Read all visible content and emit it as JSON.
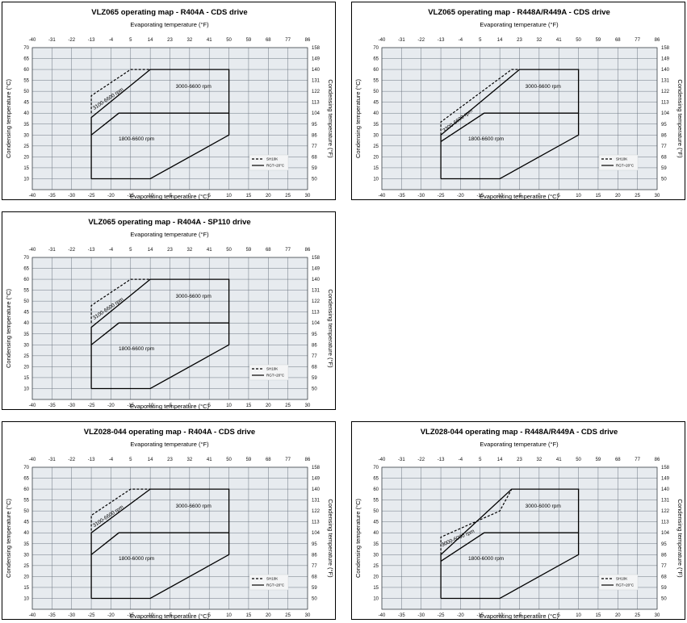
{
  "axis_common": {
    "top_label": "Evaporating temperature (°F)",
    "bottom_label": "Evaporating temperature (°C)",
    "left_label": "Condensing temperature (°C)",
    "right_label": "Condensing temperature (°F)",
    "x_ticks_c": [
      "-40",
      "-35",
      "-30",
      "-25",
      "-20",
      "-15",
      "-10",
      "-5",
      "0",
      "5",
      "10",
      "15",
      "20",
      "25",
      "30"
    ],
    "x_ticks_f": [
      "-40",
      "-31",
      "-22",
      "-13",
      "-4",
      "5",
      "14",
      "23",
      "32",
      "41",
      "50",
      "59",
      "68",
      "77",
      "86"
    ],
    "y_ticks_c": [
      "10",
      "15",
      "20",
      "25",
      "30",
      "35",
      "40",
      "45",
      "50",
      "55",
      "60",
      "65",
      "70"
    ],
    "y_ticks_f": [
      "50",
      "59",
      "68",
      "77",
      "86",
      "95",
      "104",
      "113",
      "122",
      "131",
      "140",
      "149",
      "158"
    ]
  },
  "chart_data": [
    {
      "type": "line",
      "title": "VLZ065 operating map - R404A - CDS drive",
      "xlim": [
        -40,
        30
      ],
      "ylim": [
        5,
        70
      ],
      "legend": [
        "SH10K",
        "RGT=20°C"
      ],
      "legend_position": "bottom-right",
      "regions": [
        "3000-6600 rpm",
        "1800-6600 rpm"
      ],
      "band_label": "3100-6600 rpm",
      "series": [
        {
          "name": "RGT=20°C envelope",
          "style": "solid",
          "points": [
            [
              -25,
              10
            ],
            [
              -10,
              10
            ],
            [
              10,
              30
            ],
            [
              10,
              60
            ],
            [
              -10,
              60
            ],
            [
              -25,
              38
            ],
            [
              -25,
              10
            ]
          ]
        },
        {
          "name": "1800-6600 rpm upper limit",
          "style": "solid",
          "points": [
            [
              -25,
              30
            ],
            [
              -18,
              40
            ],
            [
              10,
              40
            ]
          ]
        },
        {
          "name": "SH10K envelope",
          "style": "dashed",
          "points": [
            [
              -25,
              40
            ],
            [
              -25,
              48
            ],
            [
              -15,
              60
            ],
            [
              -10,
              60
            ]
          ]
        }
      ]
    },
    {
      "type": "line",
      "title": "VLZ065 operating map - R448A/R449A - CDS drive",
      "xlim": [
        -40,
        30
      ],
      "ylim": [
        5,
        70
      ],
      "legend": [
        "SH10K",
        "RGT=20°C"
      ],
      "legend_position": "bottom-right",
      "regions": [
        "3000-6600 rpm",
        "1800-6600 rpm"
      ],
      "band_label": "3300-6600 rpm",
      "series": [
        {
          "name": "RGT=20°C envelope",
          "style": "solid",
          "points": [
            [
              -25,
              10
            ],
            [
              -10,
              10
            ],
            [
              10,
              30
            ],
            [
              10,
              60
            ],
            [
              -5,
              60
            ],
            [
              -25,
              30
            ],
            [
              -25,
              10
            ]
          ]
        },
        {
          "name": "1800-6600 rpm upper limit",
          "style": "solid",
          "points": [
            [
              -25,
              27
            ],
            [
              -14,
              40
            ],
            [
              10,
              40
            ]
          ]
        },
        {
          "name": "SH10K envelope",
          "style": "dashed",
          "points": [
            [
              -25,
              30
            ],
            [
              -25,
              36
            ],
            [
              -7,
              60
            ],
            [
              -5,
              60
            ]
          ]
        }
      ]
    },
    {
      "type": "line",
      "title": "VLZ065 operating map - R404A - SP110 drive",
      "xlim": [
        -40,
        30
      ],
      "ylim": [
        5,
        70
      ],
      "legend": [
        "SH10K",
        "RGT=20°C"
      ],
      "legend_position": "bottom-right",
      "regions": [
        "3000-6600 rpm",
        "1800-6600 rpm"
      ],
      "band_label": "3100-6600 rpm",
      "series": [
        {
          "name": "RGT=20°C envelope",
          "style": "solid",
          "points": [
            [
              -25,
              10
            ],
            [
              -10,
              10
            ],
            [
              10,
              30
            ],
            [
              10,
              60
            ],
            [
              -10,
              60
            ],
            [
              -25,
              38
            ],
            [
              -25,
              10
            ]
          ]
        },
        {
          "name": "1800-6600 rpm upper limit",
          "style": "solid",
          "points": [
            [
              -25,
              30
            ],
            [
              -18,
              40
            ],
            [
              10,
              40
            ]
          ]
        },
        {
          "name": "SH10K envelope",
          "style": "dashed",
          "points": [
            [
              -25,
              40
            ],
            [
              -25,
              48
            ],
            [
              -15,
              60
            ],
            [
              -10,
              60
            ]
          ]
        }
      ]
    },
    {
      "type": "line",
      "title": "VLZ028-044 operating map - R404A - CDS drive",
      "xlim": [
        -40,
        30
      ],
      "ylim": [
        5,
        70
      ],
      "legend": [
        "SH10K",
        "RGT=20°C"
      ],
      "legend_position": "bottom-right",
      "regions": [
        "3000-6600 rpm",
        "1800-6000 rpm"
      ],
      "band_label": "3100-6600 rpm",
      "series": [
        {
          "name": "RGT=20°C envelope",
          "style": "solid",
          "points": [
            [
              -25,
              10
            ],
            [
              -10,
              10
            ],
            [
              10,
              30
            ],
            [
              10,
              60
            ],
            [
              -10,
              60
            ],
            [
              -25,
              40
            ],
            [
              -25,
              10
            ]
          ]
        },
        {
          "name": "1800-6000 rpm upper limit",
          "style": "solid",
          "points": [
            [
              -25,
              30
            ],
            [
              -18,
              40
            ],
            [
              10,
              40
            ]
          ]
        },
        {
          "name": "SH10K envelope",
          "style": "dashed",
          "points": [
            [
              -25,
              41
            ],
            [
              -25,
              48
            ],
            [
              -15,
              60
            ],
            [
              -10,
              60
            ]
          ]
        }
      ]
    },
    {
      "type": "line",
      "title": "VLZ028-044 operating map - R448A/R449A - CDS drive",
      "xlim": [
        -40,
        30
      ],
      "ylim": [
        5,
        70
      ],
      "legend": [
        "SH10K",
        "RGT=20°C"
      ],
      "legend_position": "bottom-right",
      "regions": [
        "3000-6000 rpm",
        "1800-6000 rpm"
      ],
      "band_label": "3000-6000 rpm",
      "series": [
        {
          "name": "RGT=20°C envelope",
          "style": "solid",
          "points": [
            [
              -25,
              10
            ],
            [
              -10,
              10
            ],
            [
              10,
              30
            ],
            [
              10,
              60
            ],
            [
              -7,
              60
            ],
            [
              -25,
              30
            ],
            [
              -25,
              10
            ]
          ]
        },
        {
          "name": "1800-6000 rpm upper limit",
          "style": "solid",
          "points": [
            [
              -25,
              27
            ],
            [
              -14,
              40
            ],
            [
              10,
              40
            ]
          ]
        },
        {
          "name": "SH10K envelope",
          "style": "dashed",
          "points": [
            [
              -25,
              30
            ],
            [
              -25,
              38
            ],
            [
              -10,
              50
            ],
            [
              -7,
              60
            ]
          ]
        }
      ]
    }
  ]
}
